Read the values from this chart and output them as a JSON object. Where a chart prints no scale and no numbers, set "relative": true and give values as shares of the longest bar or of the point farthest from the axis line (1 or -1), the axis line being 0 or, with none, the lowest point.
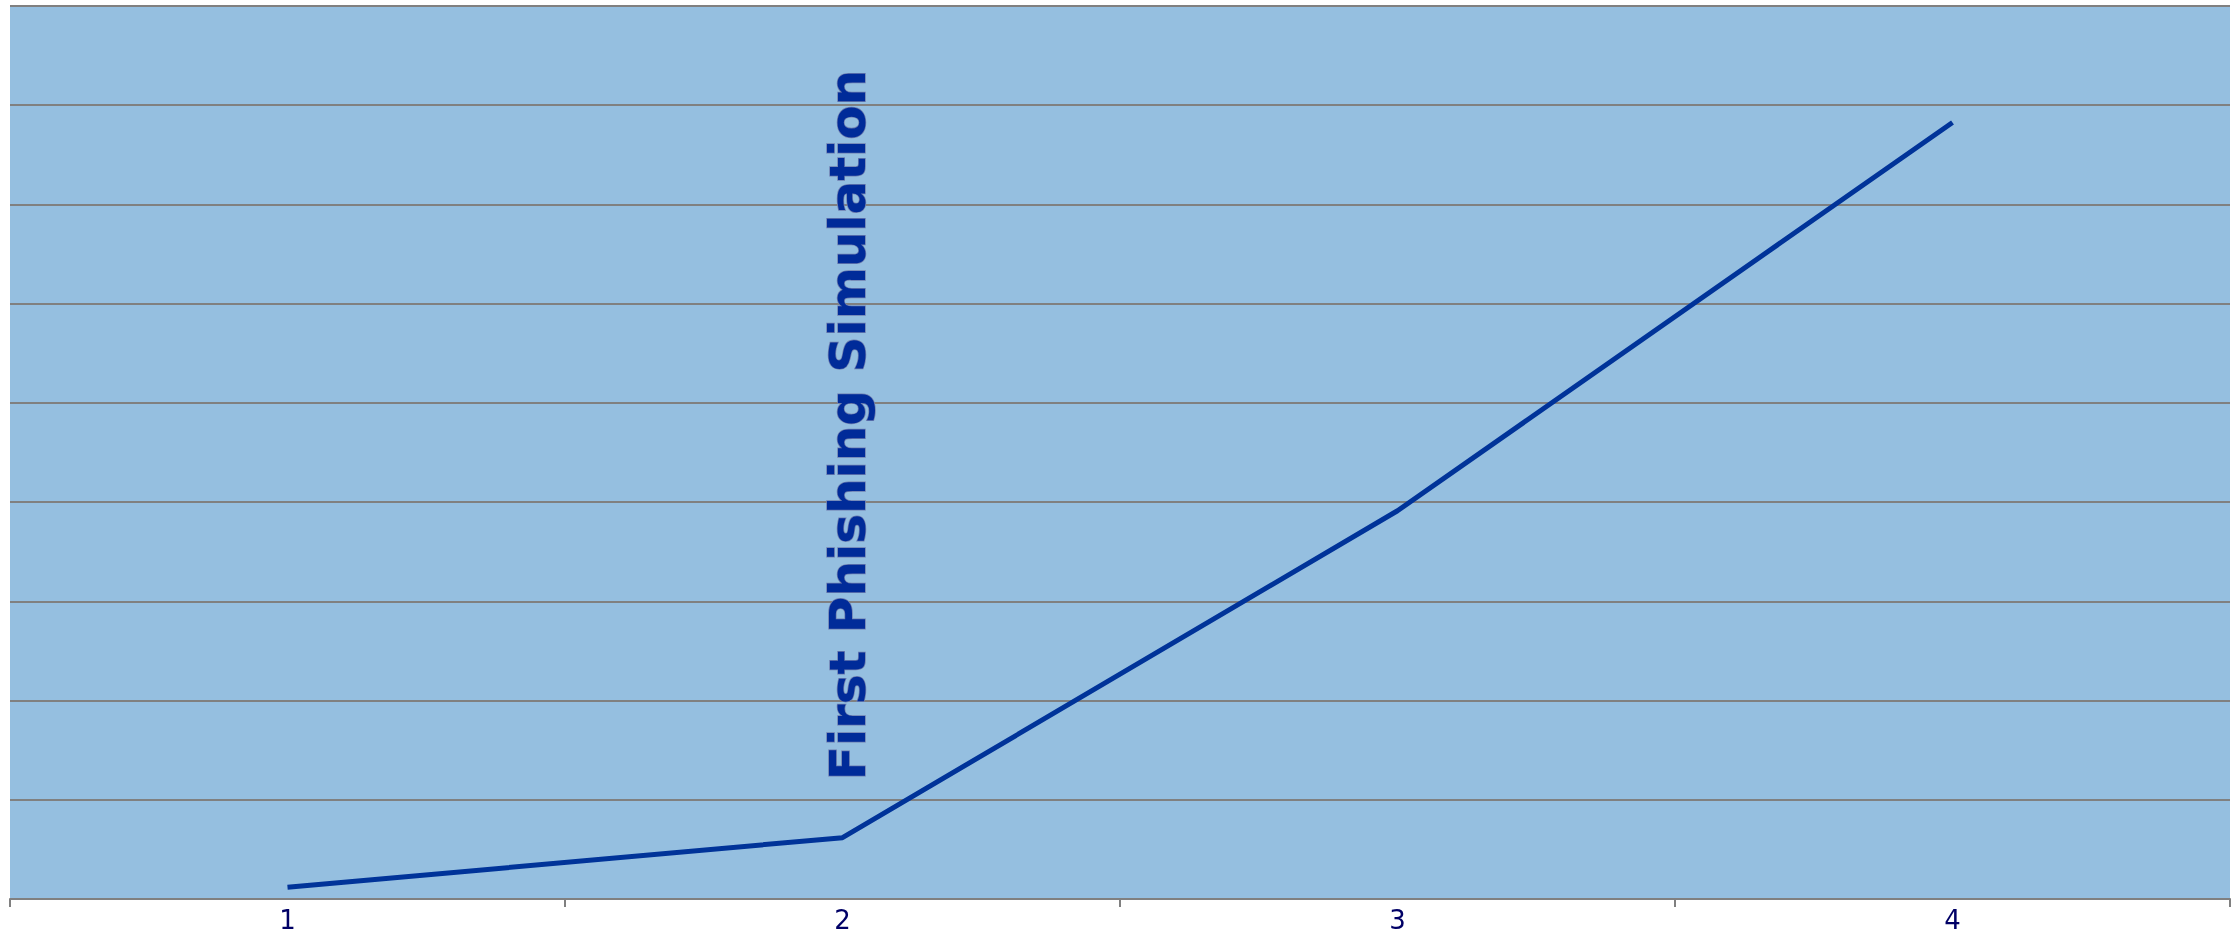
{
  "chart_data": {
    "type": "line",
    "relative": true,
    "categories": [
      "1",
      "2",
      "3",
      "4"
    ],
    "series": [
      {
        "color": "#003399",
        "values": [
          0.015,
          0.079,
          0.5,
          1
        ]
      }
    ],
    "annotations": [
      "First Phishing Simulation"
    ],
    "grid": "y",
    "marker": "none",
    "line_style": "solid"
  }
}
